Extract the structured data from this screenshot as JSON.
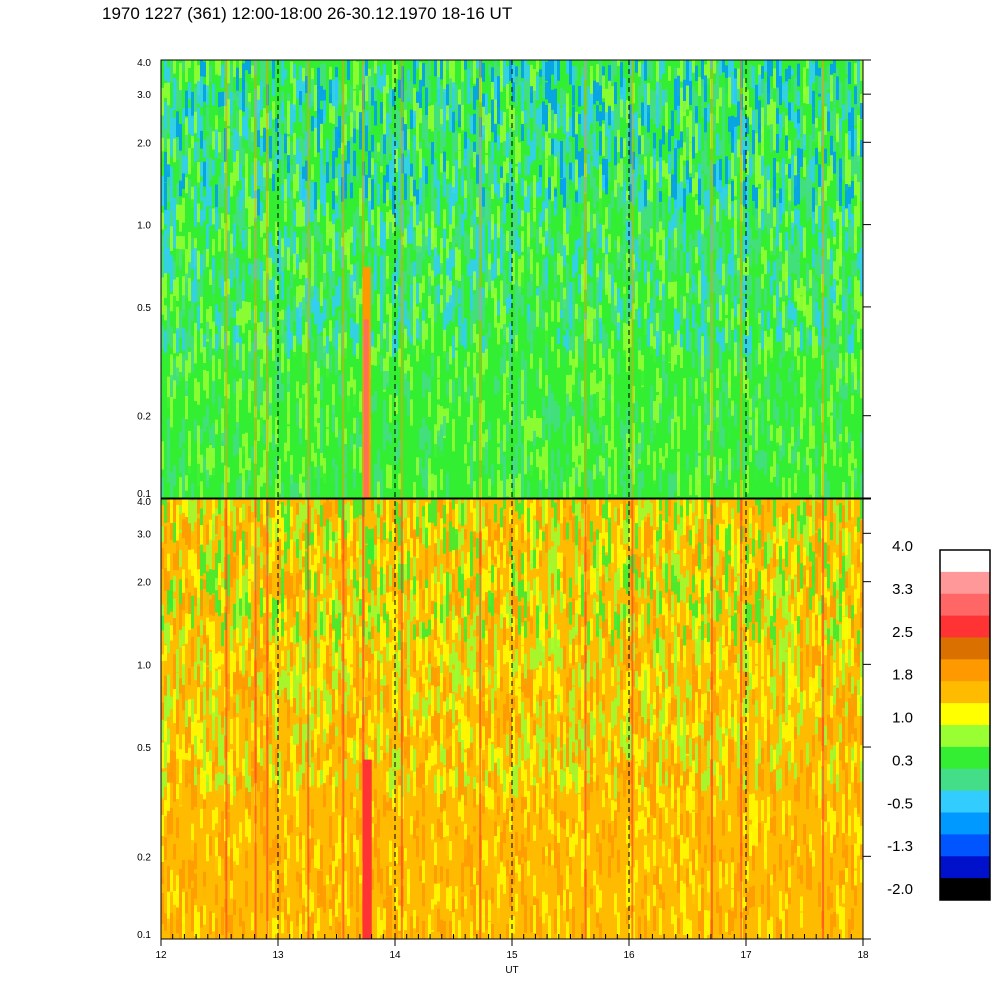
{
  "title": "1970 1227 (361) 12:00-18:00 26-30.12.1970  18-16 UT",
  "chart_data": [
    {
      "type": "heatmap",
      "panel": "top",
      "x_range": [
        12,
        18
      ],
      "y_range": [
        0.1,
        4.0
      ],
      "y_scale": "log",
      "x_ticks": [
        12,
        13,
        14,
        15,
        16,
        17,
        18
      ],
      "y_ticks": [
        "0.1",
        "0.2",
        "0.5",
        "1.0",
        "2.0",
        "3.0",
        "4.0"
      ],
      "dominant_levels": [
        "0.3",
        "-0.5",
        "-1.3",
        "1.0"
      ],
      "vertical_dashed_lines_at": [
        13,
        14,
        15,
        16,
        17
      ]
    },
    {
      "type": "heatmap",
      "panel": "bottom",
      "x_range": [
        12,
        18
      ],
      "y_range": [
        0.1,
        4.0
      ],
      "y_scale": "log",
      "x_ticks": [
        "12",
        "13",
        "14",
        "15",
        "16",
        "17",
        "18"
      ],
      "y_ticks": [
        "0.1",
        "0.2",
        "0.5",
        "1.0",
        "2.0",
        "3.0",
        "4.0"
      ],
      "xlabel": "UT",
      "dominant_levels": [
        "1.8",
        "1.0",
        "2.5"
      ],
      "vertical_dashed_lines_at": [
        13,
        14,
        15,
        16,
        17
      ]
    }
  ],
  "colorbar": {
    "labels": [
      "4.0",
      "3.3",
      "2.5",
      "1.8",
      "1.0",
      "0.3",
      "-0.5",
      "-1.3",
      "-2.0"
    ],
    "colors_top_to_bottom": [
      "#ffffff",
      "#ff9999",
      "#ff6666",
      "#ff3333",
      "#d97000",
      "#ff9900",
      "#ffbb00",
      "#ffff00",
      "#99ff33",
      "#33ee33",
      "#44dd88",
      "#33ccff",
      "#0099ff",
      "#0055ff",
      "#0011cc",
      "#000000"
    ]
  }
}
